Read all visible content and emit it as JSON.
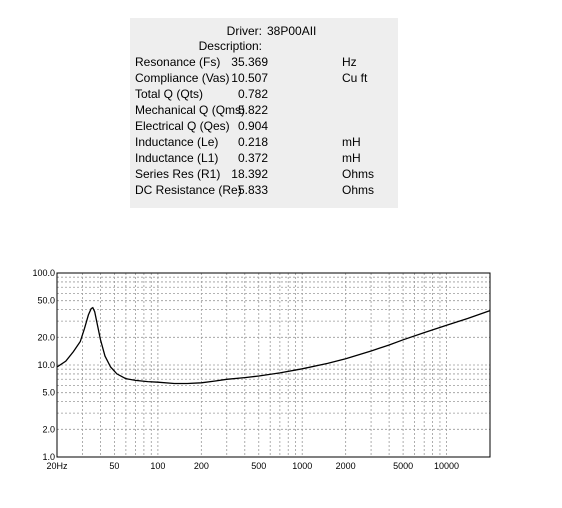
{
  "header": {
    "driver_label": "Driver:",
    "driver_value": "38P00AII",
    "description_label": "Description:",
    "description_value": ""
  },
  "params": [
    {
      "label": "Resonance (Fs)",
      "value": "35.369",
      "unit": "Hz"
    },
    {
      "label": "Compliance (Vas)",
      "value": "10.507",
      "unit": "Cu ft"
    },
    {
      "label": "Total Q (Qts)",
      "value": "0.782",
      "unit": ""
    },
    {
      "label": "Mechanical Q (Qms)",
      "value": "5.822",
      "unit": ""
    },
    {
      "label": "Electrical Q (Qes)",
      "value": "0.904",
      "unit": ""
    },
    {
      "label": "Inductance (Le)",
      "value": "0.218",
      "unit": "mH"
    },
    {
      "label": "Inductance (L1)",
      "value": "0.372",
      "unit": "mH"
    },
    {
      "label": "Series Res (R1)",
      "value": "18.392",
      "unit": "Ohms"
    },
    {
      "label": "DC Resistance (Re)",
      "value": "5.833",
      "unit": "Ohms"
    }
  ],
  "chart_data": {
    "type": "line",
    "title": "",
    "xlabel": "",
    "ylabel": "",
    "x_scale": "log",
    "y_scale": "log",
    "xlim": [
      20,
      20000
    ],
    "ylim": [
      1,
      100
    ],
    "grid": true,
    "x_ticks": [
      {
        "value": 20,
        "label": "20Hz"
      },
      {
        "value": 50,
        "label": "50"
      },
      {
        "value": 100,
        "label": "100"
      },
      {
        "value": 200,
        "label": "200"
      },
      {
        "value": 500,
        "label": "500"
      },
      {
        "value": 1000,
        "label": "1000"
      },
      {
        "value": 2000,
        "label": "2000"
      },
      {
        "value": 5000,
        "label": "5000"
      },
      {
        "value": 10000,
        "label": "10000"
      }
    ],
    "y_ticks": [
      {
        "value": 1,
        "label": "1.0"
      },
      {
        "value": 2,
        "label": "2.0"
      },
      {
        "value": 5,
        "label": "5.0"
      },
      {
        "value": 10,
        "label": "10.0"
      },
      {
        "value": 20,
        "label": "20.0"
      },
      {
        "value": 50,
        "label": "50.0"
      },
      {
        "value": 100,
        "label": "100.0"
      }
    ],
    "series": [
      {
        "x": [
          20,
          23,
          26,
          29,
          31,
          33,
          34.5,
          35.4,
          36.5,
          38,
          40,
          43,
          47,
          52,
          60,
          70,
          85,
          100,
          130,
          160,
          200,
          250,
          300,
          400,
          500,
          700,
          1000,
          1500,
          2000,
          3000,
          4000,
          5000,
          7000,
          10000,
          14000,
          20000
        ],
        "y": [
          9.5,
          11,
          14,
          18,
          25,
          35,
          41,
          42,
          38,
          28,
          19,
          12.5,
          9.5,
          8.0,
          7.1,
          6.8,
          6.6,
          6.5,
          6.3,
          6.3,
          6.4,
          6.7,
          7.0,
          7.3,
          7.6,
          8.2,
          9.1,
          10.4,
          11.7,
          14.2,
          16.5,
          18.8,
          22.5,
          27,
          32,
          39
        ]
      }
    ]
  }
}
